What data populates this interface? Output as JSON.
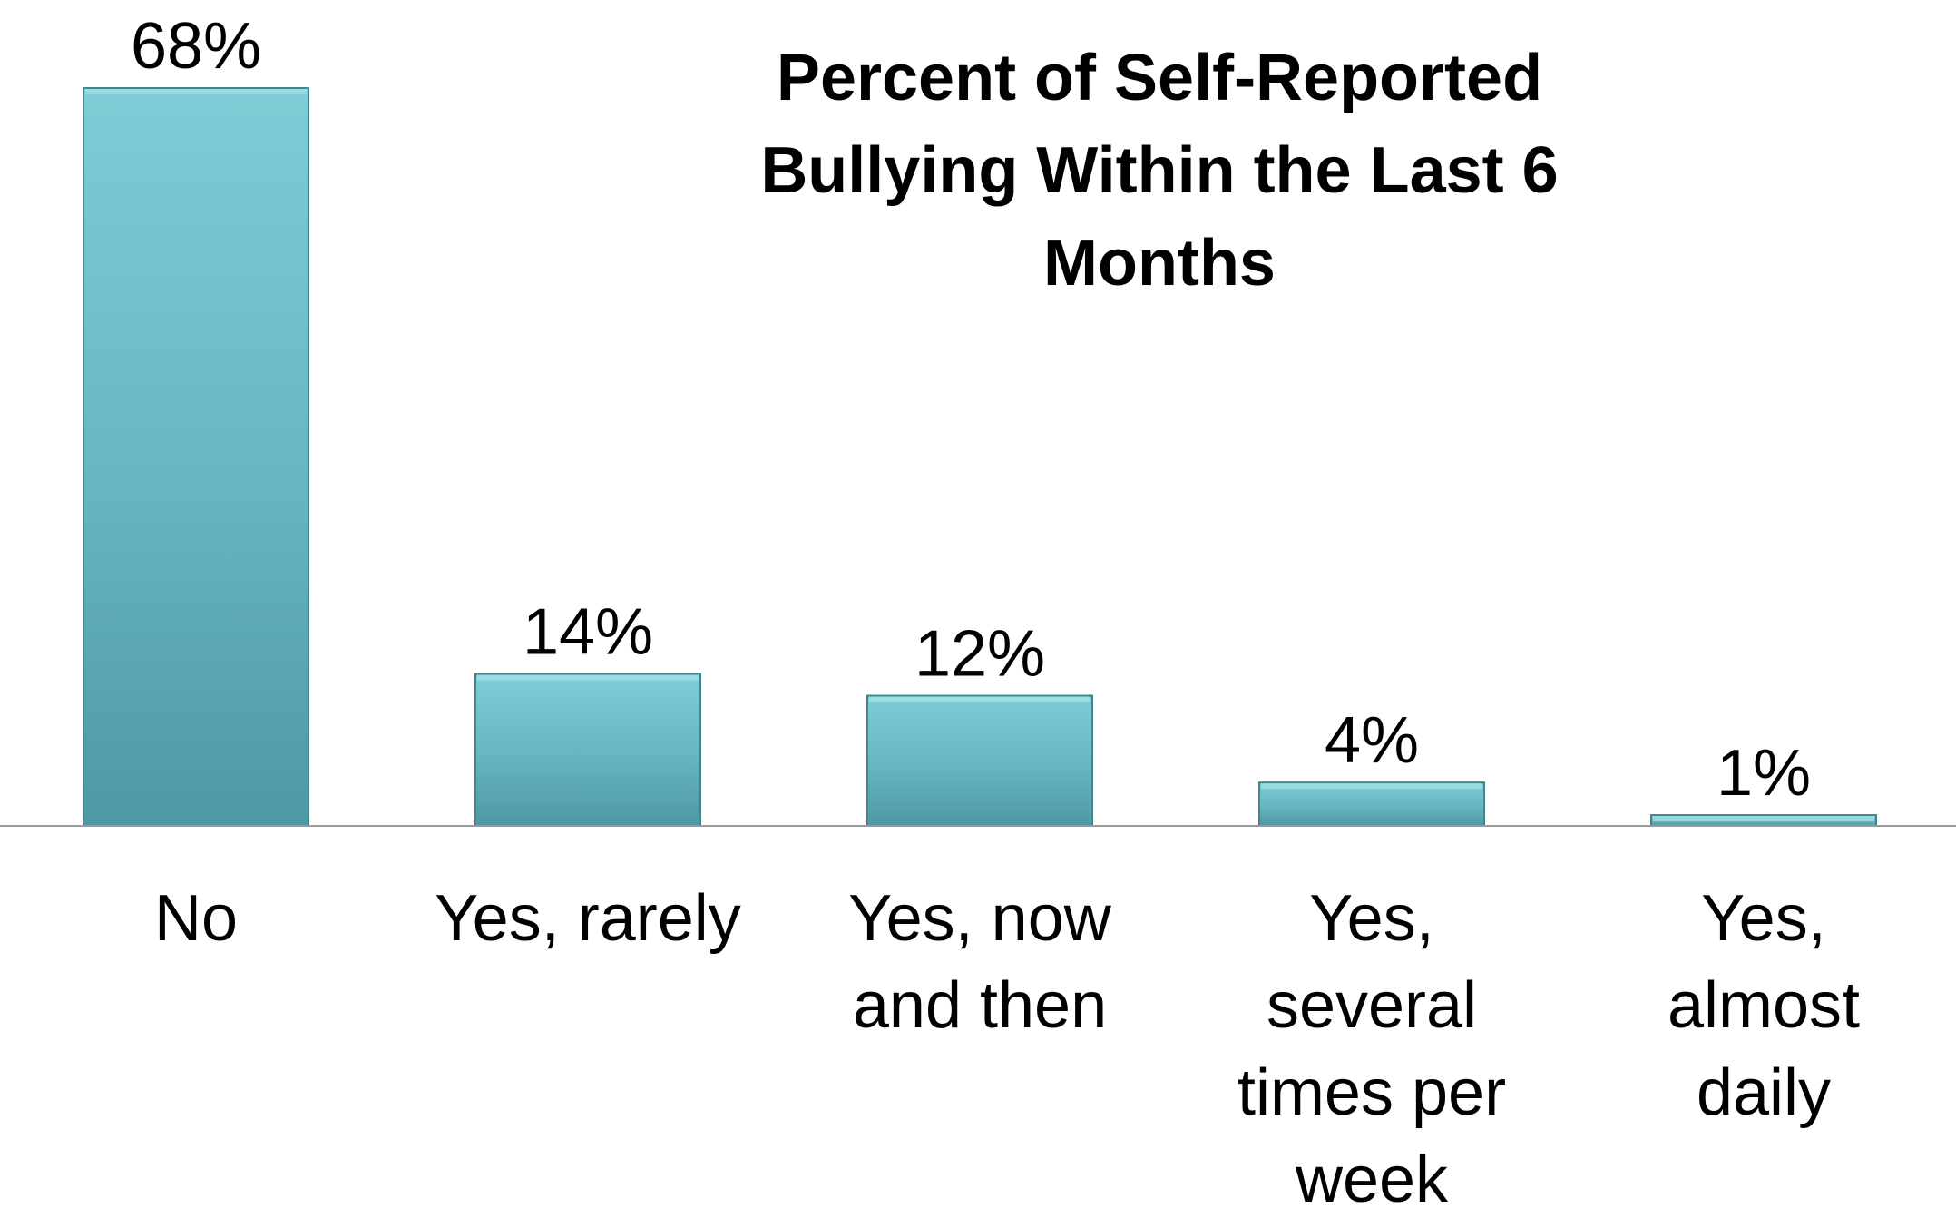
{
  "chart_data": {
    "type": "bar",
    "title_lines": [
      "Percent of Self-Reported",
      "Bullying Within the Last 6",
      "Months"
    ],
    "categories": [
      [
        "No"
      ],
      [
        "Yes, rarely"
      ],
      [
        "Yes, now",
        "and then"
      ],
      [
        "Yes,",
        "several",
        "times per",
        "week"
      ],
      [
        "Yes,",
        "almost",
        "daily"
      ]
    ],
    "values": [
      68,
      14,
      12,
      4,
      1
    ],
    "data_labels": [
      "68%",
      "14%",
      "12%",
      "4%",
      "1%"
    ],
    "ylim": [
      0,
      68
    ],
    "grid": false,
    "legend": "none",
    "colors": {
      "bar_light": "#7ecdd6",
      "bar_mid": "#66b5bf",
      "bar_dark": "#4e98a3",
      "bar_edge": "#3f8791",
      "axis": "#9a9a9a"
    }
  }
}
